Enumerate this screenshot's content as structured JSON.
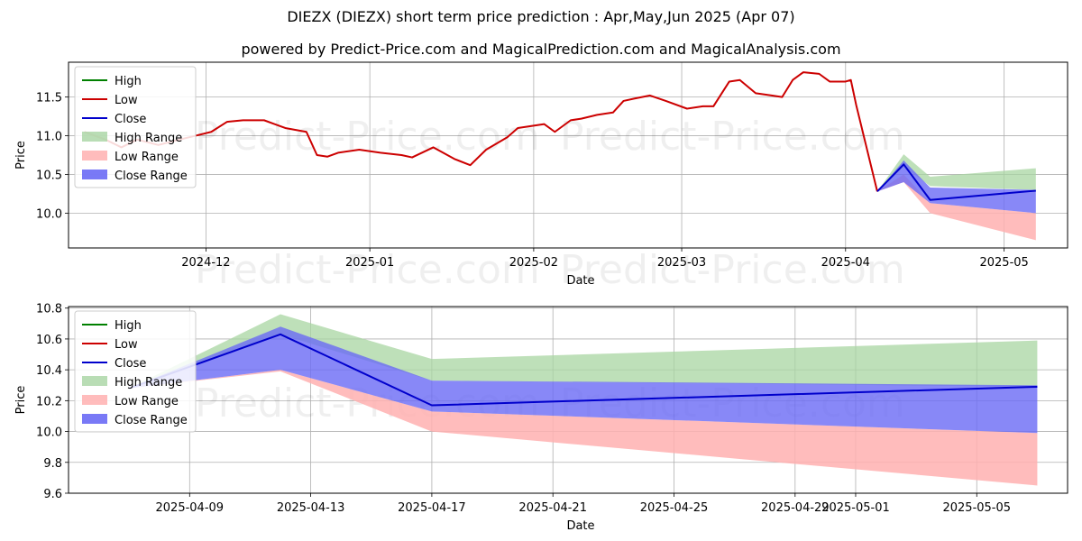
{
  "header": {
    "title": "DIEZX (DIEZX) short term price prediction : Apr,May,Jun 2025 (Apr 07)",
    "subtitle": "powered by Predict-Price.com and MagicalPrediction.com and MagicalAnalysis.com"
  },
  "watermark": "Predict-Price.com",
  "colors": {
    "high": "#008000",
    "low": "#cc0000",
    "close": "#0000cc",
    "high_range": "#a8d5a2",
    "low_range": "#ffb0b0",
    "close_range": "#6a6af5"
  },
  "legend": [
    "High",
    "Low",
    "Close",
    "High Range",
    "Low Range",
    "Close Range"
  ],
  "chart_data": [
    {
      "type": "line",
      "xlabel": "Date",
      "ylabel": "Price",
      "ylim": [
        9.55,
        11.95
      ],
      "xlim": [
        "2024-11-05",
        "2025-05-13"
      ],
      "yticks": [
        "10.0",
        "10.5",
        "11.0",
        "11.5"
      ],
      "xticks": [
        "2024-12",
        "2025-01",
        "2025-02",
        "2025-03",
        "2025-04",
        "2025-05"
      ],
      "legend_position": "upper-left",
      "grid": true,
      "series": [
        {
          "name": "Low",
          "x": [
            "2024-11-08",
            "2024-11-12",
            "2024-11-15",
            "2024-11-18",
            "2024-11-22",
            "2024-11-26",
            "2024-11-29",
            "2024-12-02",
            "2024-12-05",
            "2024-12-08",
            "2024-12-12",
            "2024-12-14",
            "2024-12-16",
            "2024-12-20",
            "2024-12-22",
            "2024-12-24",
            "2024-12-26",
            "2024-12-30",
            "2025-01-03",
            "2025-01-07",
            "2025-01-09",
            "2025-01-13",
            "2025-01-17",
            "2025-01-20",
            "2025-01-23",
            "2025-01-27",
            "2025-01-29",
            "2025-01-31",
            "2025-02-03",
            "2025-02-05",
            "2025-02-08",
            "2025-02-10",
            "2025-02-13",
            "2025-02-16",
            "2025-02-18",
            "2025-02-20",
            "2025-02-23",
            "2025-02-26",
            "2025-03-02",
            "2025-03-05",
            "2025-03-07",
            "2025-03-10",
            "2025-03-12",
            "2025-03-15",
            "2025-03-18",
            "2025-03-20",
            "2025-03-22",
            "2025-03-24",
            "2025-03-27",
            "2025-03-29",
            "2025-04-01",
            "2025-04-02",
            "2025-04-03",
            "2025-04-07"
          ],
          "values": [
            11.05,
            10.95,
            10.85,
            10.95,
            10.88,
            10.95,
            11.0,
            11.05,
            11.18,
            11.2,
            11.2,
            11.15,
            11.1,
            11.05,
            10.75,
            10.73,
            10.78,
            10.82,
            10.78,
            10.75,
            10.72,
            10.85,
            10.7,
            10.62,
            10.82,
            10.98,
            11.1,
            11.12,
            11.15,
            11.05,
            11.2,
            11.22,
            11.27,
            11.3,
            11.45,
            11.48,
            11.52,
            11.45,
            11.35,
            11.38,
            11.38,
            11.7,
            11.72,
            11.55,
            11.52,
            11.5,
            11.72,
            11.82,
            11.8,
            11.7,
            11.7,
            11.72,
            11.4,
            10.28
          ],
          "color": "#cc0000"
        }
      ],
      "forecast": {
        "x": [
          "2025-04-07",
          "2025-04-12",
          "2025-04-17",
          "2025-05-07"
        ],
        "close": [
          10.28,
          10.63,
          10.17,
          10.29
        ],
        "high_range": [
          [
            10.28,
            10.28
          ],
          [
            10.6,
            10.76
          ],
          [
            10.35,
            10.47
          ],
          [
            10.3,
            10.58
          ]
        ],
        "low_range": [
          [
            10.28,
            10.28
          ],
          [
            10.4,
            10.5
          ],
          [
            10.0,
            10.13
          ],
          [
            9.65,
            10.0
          ]
        ],
        "close_range": [
          [
            10.28,
            10.28
          ],
          [
            10.4,
            10.68
          ],
          [
            10.13,
            10.33
          ],
          [
            10.0,
            10.3
          ]
        ]
      }
    },
    {
      "type": "line",
      "xlabel": "Date",
      "ylabel": "Price",
      "ylim": [
        9.6,
        10.81
      ],
      "xlim": [
        "2025-04-05",
        "2025-05-08"
      ],
      "yticks": [
        "9.6",
        "9.8",
        "10.0",
        "10.2",
        "10.4",
        "10.6",
        "10.8"
      ],
      "xticks": [
        "2025-04-09",
        "2025-04-13",
        "2025-04-17",
        "2025-04-21",
        "2025-04-25",
        "2025-04-29",
        "2025-05-01",
        "2025-05-05"
      ],
      "legend_position": "upper-left",
      "grid": true,
      "forecast": {
        "x": [
          "2025-04-07",
          "2025-04-12",
          "2025-04-17",
          "2025-05-07"
        ],
        "close": [
          10.28,
          10.63,
          10.17,
          10.29
        ],
        "high_range": [
          [
            10.28,
            10.28
          ],
          [
            10.63,
            10.76
          ],
          [
            10.33,
            10.47
          ],
          [
            10.29,
            10.59
          ]
        ],
        "low_range": [
          [
            10.28,
            10.28
          ],
          [
            10.39,
            10.4
          ],
          [
            10.0,
            10.13
          ],
          [
            9.65,
            9.99
          ]
        ],
        "close_range": [
          [
            10.28,
            10.28
          ],
          [
            10.4,
            10.68
          ],
          [
            10.13,
            10.33
          ],
          [
            9.99,
            10.3
          ]
        ]
      }
    }
  ]
}
